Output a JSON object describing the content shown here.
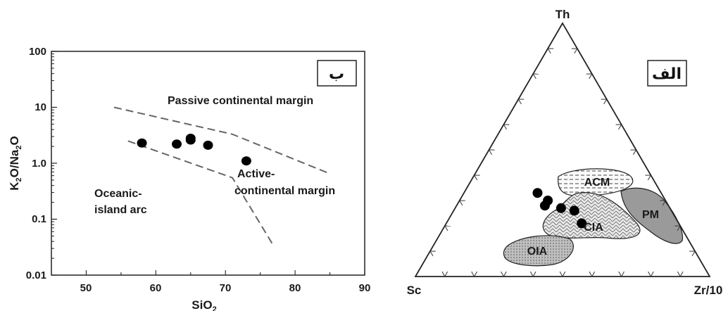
{
  "chart_data": [
    {
      "type": "scatter",
      "panel_tag": "ب",
      "xlabel": "SiO",
      "xlabel_sub": "2",
      "ylabel_parts": [
        "K",
        "2",
        "O/Na",
        "2",
        "O"
      ],
      "xlim": [
        45,
        90
      ],
      "ylim": [
        0.01,
        100
      ],
      "log_y": true,
      "x_ticks": [
        "50",
        "60",
        "70",
        "80",
        "90"
      ],
      "y_ticks": [
        "0.01",
        "0.1",
        "1.0",
        "10",
        "100"
      ],
      "points": [
        {
          "x": 58,
          "y": 2.3
        },
        {
          "x": 63,
          "y": 2.2
        },
        {
          "x": 65,
          "y": 2.6
        },
        {
          "x": 65,
          "y": 2.8
        },
        {
          "x": 67.5,
          "y": 2.1
        },
        {
          "x": 73,
          "y": 1.1
        }
      ],
      "boundaries": [
        {
          "points": [
            [
              54,
              10
            ],
            [
              71,
              3.3
            ],
            [
              85,
              0.65
            ]
          ]
        },
        {
          "points": [
            [
              56,
              2.5
            ],
            [
              71,
              0.55
            ],
            [
              77,
              0.032
            ]
          ]
        }
      ],
      "regions": {
        "passive": "Passive continental margin",
        "active_1": "Active-",
        "active_2": "continental margin",
        "oceanic_1": "Oceanic-",
        "oceanic_2": "island arc"
      },
      "grid": false
    },
    {
      "type": "ternary",
      "panel_tag": "الف",
      "apex_top": "Th",
      "apex_left": "Sc",
      "apex_right": "Zr/10",
      "fields": {
        "acm": "ACM",
        "cia": "CIA",
        "pm": "PM",
        "oia": "OIA"
      },
      "points": [
        {
          "th": 0.33,
          "sc": 0.42,
          "zr": 0.25
        },
        {
          "th": 0.3,
          "sc": 0.4,
          "zr": 0.3
        },
        {
          "th": 0.27,
          "sc": 0.37,
          "zr": 0.36
        },
        {
          "th": 0.28,
          "sc": 0.42,
          "zr": 0.3
        },
        {
          "th": 0.26,
          "sc": 0.33,
          "zr": 0.41
        },
        {
          "th": 0.21,
          "sc": 0.33,
          "zr": 0.46
        }
      ]
    }
  ]
}
